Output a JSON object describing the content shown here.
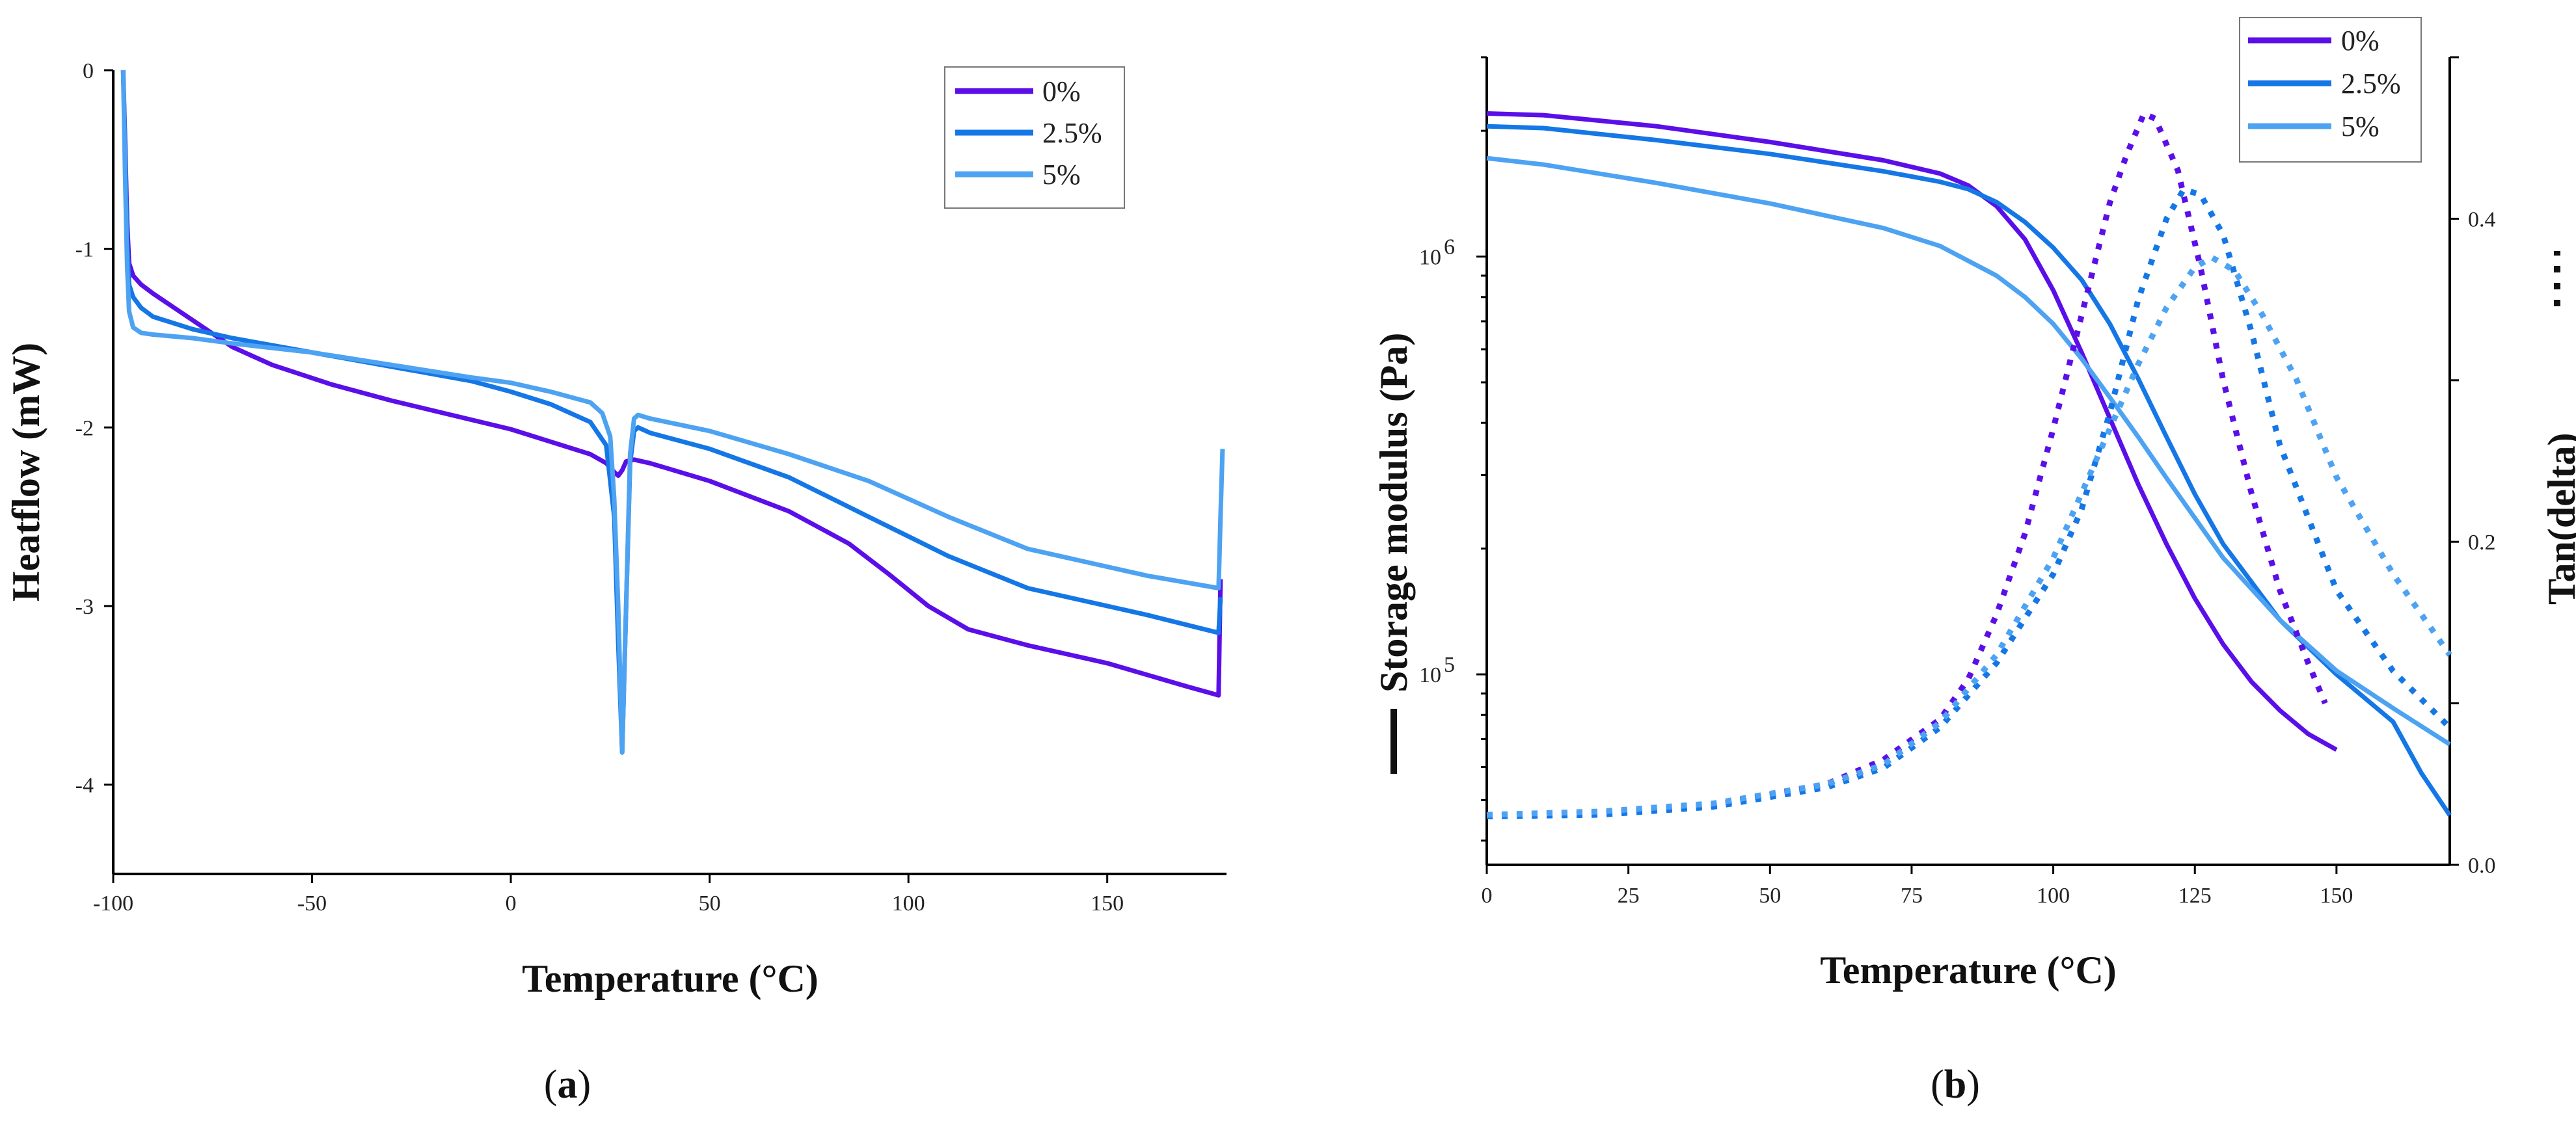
{
  "chart_data": [
    {
      "type": "line",
      "panel_label": "(a)",
      "xlabel": "Temperature (°C)",
      "ylabel": "Heatflow (mW)",
      "xlim": [
        -100,
        180
      ],
      "ylim": [
        -4.5,
        0
      ],
      "xticks": [
        "-100",
        "-50",
        "0",
        "50",
        "100",
        "150"
      ],
      "yticks": [
        "0",
        "-1",
        "-2",
        "-3",
        "-4"
      ],
      "legend_position": "top-right",
      "series": [
        {
          "name": "0%",
          "color": "#5b0fe8",
          "x": [
            -97.5,
            -97,
            -96.5,
            -96,
            -95,
            -93,
            -90,
            -80,
            -70,
            -60,
            -45,
            -30,
            -15,
            0,
            10,
            20,
            24,
            26,
            27,
            28,
            29,
            31,
            35,
            50,
            70,
            85,
            95,
            105,
            115,
            130,
            150,
            170,
            178,
            178.5
          ],
          "y": [
            0,
            -0.4,
            -0.85,
            -1.08,
            -1.15,
            -1.2,
            -1.25,
            -1.4,
            -1.55,
            -1.65,
            -1.76,
            -1.85,
            -1.93,
            -2.01,
            -2.08,
            -2.15,
            -2.2,
            -2.25,
            -2.27,
            -2.24,
            -2.19,
            -2.18,
            -2.2,
            -2.3,
            -2.47,
            -2.65,
            -2.82,
            -3.0,
            -3.13,
            -3.22,
            -3.32,
            -3.45,
            -3.5,
            -2.85
          ]
        },
        {
          "name": "2.5%",
          "color": "#1577e6",
          "x": [
            -97.5,
            -97,
            -96.5,
            -96,
            -95,
            -93,
            -90,
            -80,
            -70,
            -50,
            -30,
            -10,
            0,
            10,
            20,
            24,
            26,
            27,
            28,
            29,
            30,
            31,
            32,
            35,
            50,
            70,
            90,
            110,
            130,
            160,
            178,
            178.5
          ],
          "y": [
            0,
            -0.45,
            -0.95,
            -1.2,
            -1.27,
            -1.33,
            -1.38,
            -1.45,
            -1.5,
            -1.58,
            -1.66,
            -1.74,
            -1.8,
            -1.87,
            -1.97,
            -2.1,
            -2.5,
            -3.2,
            -3.82,
            -3.0,
            -2.2,
            -2.02,
            -2.0,
            -2.03,
            -2.12,
            -2.28,
            -2.5,
            -2.72,
            -2.9,
            -3.05,
            -3.15,
            -2.95
          ]
        },
        {
          "name": "5%",
          "color": "#4da3f2",
          "x": [
            -97.5,
            -97,
            -96.5,
            -96,
            -95,
            -93,
            -90,
            -80,
            -70,
            -50,
            -30,
            -10,
            0,
            10,
            20,
            23,
            25,
            26,
            27,
            28,
            29,
            30,
            31,
            32,
            35,
            50,
            70,
            90,
            110,
            130,
            160,
            178,
            178.5,
            179
          ],
          "y": [
            0,
            -0.6,
            -1.1,
            -1.35,
            -1.44,
            -1.47,
            -1.48,
            -1.5,
            -1.53,
            -1.58,
            -1.65,
            -1.72,
            -1.75,
            -1.8,
            -1.86,
            -1.92,
            -2.05,
            -2.4,
            -3.0,
            -3.82,
            -3.0,
            -2.15,
            -1.95,
            -1.93,
            -1.95,
            -2.02,
            -2.15,
            -2.3,
            -2.5,
            -2.68,
            -2.83,
            -2.9,
            -2.5,
            -2.12
          ]
        }
      ]
    },
    {
      "type": "line",
      "panel_label": "(b)",
      "xlabel": "Temperature (°C)",
      "ylabel": "Storage modulus (Pa)",
      "y2label": "Tan(delta)",
      "xlim": [
        0,
        170
      ],
      "ylim": [
        35000,
        3000000
      ],
      "yscale": "log",
      "y2lim": [
        0,
        0.5
      ],
      "xticks": [
        "0",
        "25",
        "50",
        "75",
        "100",
        "125",
        "150"
      ],
      "yticks": [
        {
          "base": "10",
          "exp": "5",
          "value": 100000
        },
        {
          "base": "10",
          "exp": "6",
          "value": 1000000
        }
      ],
      "y2ticks": [
        "0.0",
        "0.2",
        "0.4"
      ],
      "legend_position": "top-right",
      "series": [
        {
          "name": "0%",
          "color": "#5b0fe8",
          "axis": "left",
          "style": "solid",
          "x": [
            0,
            10,
            30,
            50,
            70,
            80,
            85,
            90,
            95,
            100,
            105,
            110,
            115,
            120,
            125,
            130,
            135,
            140,
            145,
            150
          ],
          "y": [
            2200000,
            2180000,
            2050000,
            1880000,
            1700000,
            1580000,
            1480000,
            1320000,
            1100000,
            830000,
            590000,
            410000,
            285000,
            205000,
            152000,
            118000,
            96000,
            82000,
            72000,
            66000
          ]
        },
        {
          "name": "2.5%",
          "color": "#1577e6",
          "axis": "left",
          "style": "solid",
          "x": [
            0,
            10,
            30,
            50,
            70,
            80,
            85,
            90,
            95,
            100,
            105,
            110,
            115,
            120,
            125,
            130,
            140,
            150,
            160,
            165,
            170
          ],
          "y": [
            2050000,
            2030000,
            1900000,
            1760000,
            1600000,
            1510000,
            1450000,
            1350000,
            1210000,
            1050000,
            880000,
            690000,
            510000,
            370000,
            270000,
            205000,
            135000,
            100000,
            77000,
            58000,
            46000
          ]
        },
        {
          "name": "5%",
          "color": "#4da3f2",
          "axis": "left",
          "style": "solid",
          "x": [
            0,
            10,
            30,
            50,
            70,
            80,
            90,
            95,
            100,
            105,
            110,
            115,
            120,
            130,
            140,
            150,
            160,
            170
          ],
          "y": [
            1720000,
            1660000,
            1500000,
            1340000,
            1170000,
            1060000,
            900000,
            800000,
            690000,
            570000,
            460000,
            370000,
            295000,
            190000,
            135000,
            102000,
            83000,
            68000
          ]
        },
        {
          "name": "0%",
          "color": "#5b0fe8",
          "axis": "right",
          "style": "dotted",
          "x": [
            0,
            20,
            40,
            60,
            70,
            80,
            85,
            90,
            95,
            100,
            105,
            110,
            113,
            116,
            118,
            122,
            126,
            130,
            135,
            140,
            145,
            148
          ],
          "y": [
            0.03,
            0.032,
            0.037,
            0.05,
            0.065,
            0.09,
            0.115,
            0.155,
            0.205,
            0.27,
            0.34,
            0.41,
            0.44,
            0.465,
            0.462,
            0.43,
            0.37,
            0.3,
            0.23,
            0.17,
            0.125,
            0.1
          ]
        },
        {
          "name": "2.5%",
          "color": "#1577e6",
          "axis": "right",
          "style": "dotted",
          "x": [
            0,
            20,
            40,
            60,
            70,
            80,
            90,
            100,
            105,
            110,
            115,
            120,
            123,
            126,
            130,
            135,
            140,
            150,
            160,
            170
          ],
          "y": [
            0.03,
            0.031,
            0.036,
            0.048,
            0.06,
            0.085,
            0.125,
            0.18,
            0.22,
            0.28,
            0.35,
            0.4,
            0.418,
            0.415,
            0.39,
            0.33,
            0.26,
            0.17,
            0.12,
            0.085
          ]
        },
        {
          "name": "5%",
          "color": "#4da3f2",
          "axis": "right",
          "style": "dotted",
          "x": [
            0,
            20,
            40,
            60,
            70,
            80,
            90,
            100,
            105,
            110,
            115,
            120,
            125,
            128,
            132,
            137,
            143,
            150,
            160,
            170
          ],
          "y": [
            0.031,
            0.033,
            0.038,
            0.05,
            0.062,
            0.088,
            0.13,
            0.19,
            0.23,
            0.27,
            0.31,
            0.345,
            0.37,
            0.376,
            0.368,
            0.34,
            0.3,
            0.24,
            0.18,
            0.13
          ]
        }
      ]
    }
  ]
}
